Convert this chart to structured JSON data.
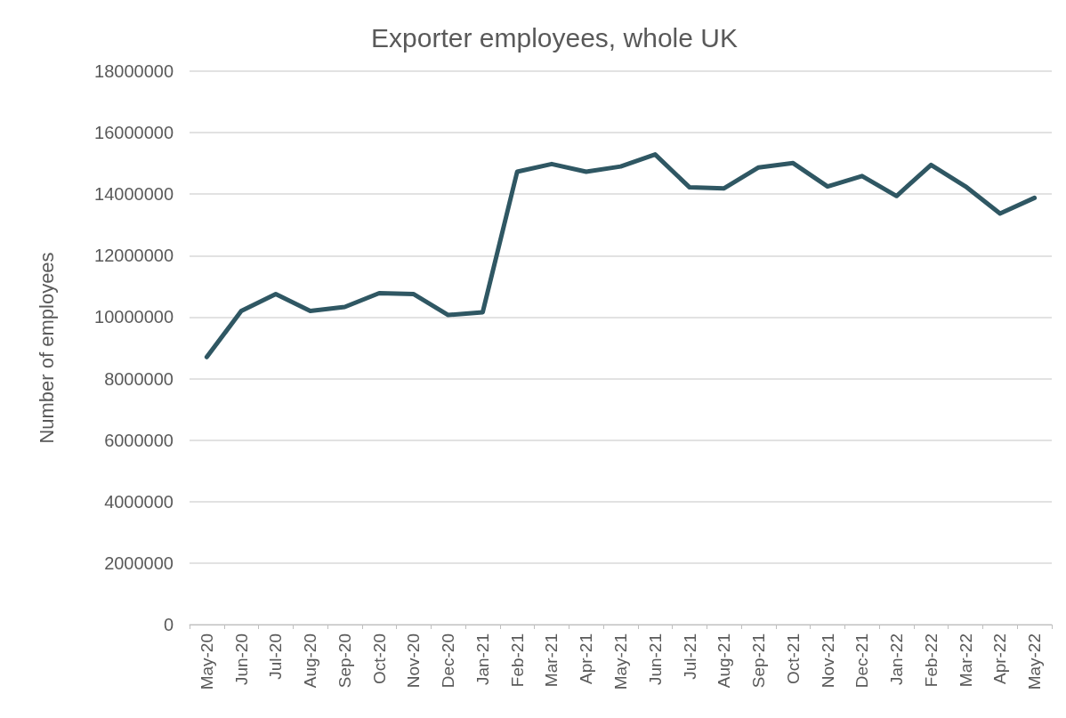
{
  "chart_data": {
    "type": "line",
    "title": "Exporter employees, whole UK",
    "ylabel": "Number of employees",
    "categories": [
      "May-20",
      "Jun-20",
      "Jul-20",
      "Aug-20",
      "Sep-20",
      "Oct-20",
      "Nov-20",
      "Dec-20",
      "Jan-21",
      "Feb-21",
      "Mar-21",
      "Apr-21",
      "May-21",
      "Jun-21",
      "Jul-21",
      "Aug-21",
      "Sep-21",
      "Oct-21",
      "Nov-21",
      "Dec-21",
      "Jan-22",
      "Feb-22",
      "Mar-22",
      "Apr-22",
      "May-22"
    ],
    "series": [
      {
        "color": "#2f5763",
        "values": [
          8700000,
          10200000,
          10750000,
          10200000,
          10330000,
          10780000,
          10750000,
          10070000,
          10160000,
          14730000,
          14980000,
          14730000,
          14900000,
          15290000,
          14220000,
          14190000,
          14870000,
          15010000,
          14250000,
          14590000,
          13940000,
          14950000,
          14250000,
          13370000,
          13880000
        ]
      }
    ],
    "ylim": [
      0,
      18000000
    ],
    "yticks": [
      0,
      2000000,
      4000000,
      6000000,
      8000000,
      10000000,
      12000000,
      14000000,
      16000000,
      18000000
    ],
    "grid": "y",
    "marker": "none",
    "line_style": "solid"
  }
}
